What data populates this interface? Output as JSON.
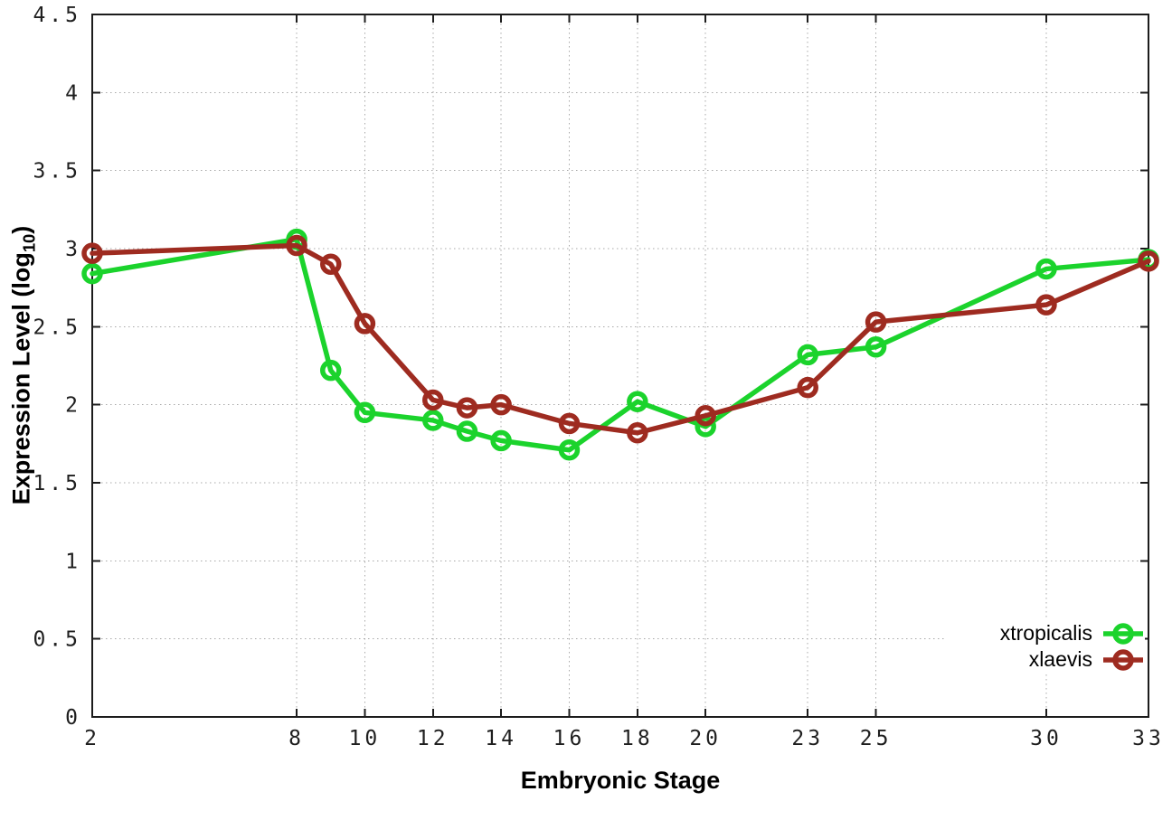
{
  "chart_data": {
    "type": "line",
    "title": "",
    "xlabel": "Embryonic Stage",
    "ylabel": "Expression Level (log10)",
    "ylabel_parts": {
      "main": "Expression Level (log",
      "sub": "10",
      "close": ")"
    },
    "x": [
      2,
      8,
      9,
      10,
      12,
      13,
      14,
      16,
      18,
      20,
      23,
      25,
      30,
      33
    ],
    "series": [
      {
        "name": "xtropicalis",
        "color": "#1bd32c",
        "marker": "open-circle",
        "values": [
          2.84,
          3.06,
          2.22,
          1.95,
          1.9,
          1.83,
          1.77,
          1.71,
          2.02,
          1.86,
          2.32,
          2.37,
          2.87,
          2.93
        ]
      },
      {
        "name": "xlaevis",
        "color": "#9e2b20",
        "marker": "open-circle",
        "values": [
          2.97,
          3.02,
          2.9,
          2.52,
          2.03,
          1.98,
          2.0,
          1.88,
          1.82,
          1.93,
          2.11,
          2.53,
          2.64,
          2.92
        ]
      }
    ],
    "x_ticks": [
      2,
      8,
      10,
      12,
      14,
      16,
      18,
      20,
      23,
      25,
      30,
      33
    ],
    "x_tick_labels": [
      "2",
      "8",
      "10",
      "12",
      "14",
      "16",
      "18",
      "20",
      "23",
      "25",
      "30",
      "33"
    ],
    "y_ticks": [
      0,
      0.5,
      1,
      1.5,
      2,
      2.5,
      3,
      3.5,
      4,
      4.5
    ],
    "y_tick_labels": [
      "0",
      "0.5",
      "1",
      "1.5",
      "2",
      "2.5",
      "3",
      "3.5",
      "4",
      "4.5"
    ],
    "xlim": [
      2,
      33
    ],
    "ylim": [
      0,
      4.5
    ],
    "grid": true,
    "grid_style": "dotted",
    "legend_position": "bottom-right",
    "colors": {
      "background": "#ffffff",
      "border": "#1c1c1c",
      "grid": "#a8a8a8",
      "tick_label": "#1f1f1f"
    }
  }
}
